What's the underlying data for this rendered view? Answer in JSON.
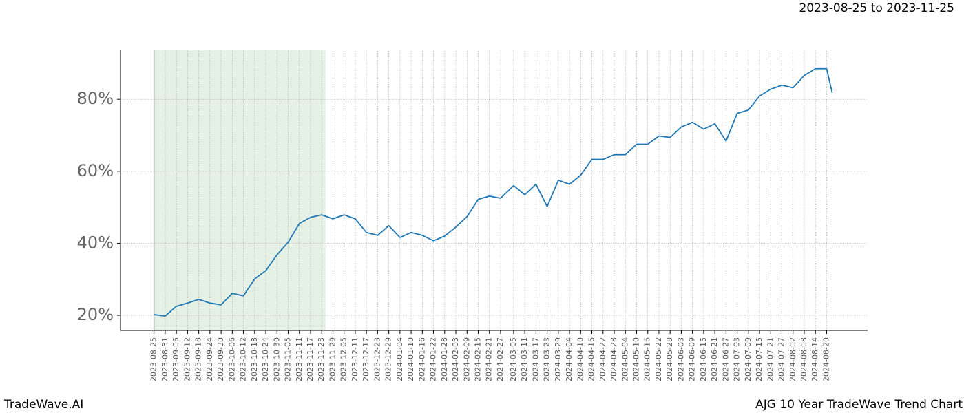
{
  "chart_data": {
    "type": "line",
    "subtitle": "2023-08-25 to 2023-11-25",
    "brand": "TradeWave.AI",
    "title": "AJG 10 Year TradeWave Trend Chart",
    "shade_range": [
      "2023-08-25",
      "2023-11-25"
    ],
    "color": "#1f77b4",
    "grid": true,
    "xlim": [
      "2023-08-07",
      "2024-09-11"
    ],
    "ylim": [
      15.8,
      93.8
    ],
    "yticks": [
      {
        "value": 20,
        "label": "20%"
      },
      {
        "value": 40,
        "label": "40%"
      },
      {
        "value": 60,
        "label": "60%"
      },
      {
        "value": 80,
        "label": "80%"
      }
    ],
    "xticks": [
      "2023-08-25",
      "2023-08-31",
      "2023-09-06",
      "2023-09-12",
      "2023-09-18",
      "2023-09-24",
      "2023-09-30",
      "2023-10-06",
      "2023-10-12",
      "2023-10-18",
      "2023-10-24",
      "2023-10-30",
      "2023-11-05",
      "2023-11-11",
      "2023-11-17",
      "2023-11-23",
      "2023-11-29",
      "2023-12-05",
      "2023-12-11",
      "2023-12-17",
      "2023-12-23",
      "2023-12-29",
      "2024-01-04",
      "2024-01-10",
      "2024-01-16",
      "2024-01-22",
      "2024-01-28",
      "2024-02-03",
      "2024-02-09",
      "2024-02-15",
      "2024-02-21",
      "2024-02-27",
      "2024-03-05",
      "2024-03-11",
      "2024-03-17",
      "2024-03-23",
      "2024-03-29",
      "2024-04-04",
      "2024-04-10",
      "2024-04-16",
      "2024-04-22",
      "2024-04-28",
      "2024-05-04",
      "2024-05-10",
      "2024-05-16",
      "2024-05-22",
      "2024-05-28",
      "2024-06-03",
      "2024-06-09",
      "2024-06-15",
      "2024-06-21",
      "2024-06-27",
      "2024-07-03",
      "2024-07-09",
      "2024-07-15",
      "2024-07-21",
      "2024-07-27",
      "2024-08-02",
      "2024-08-08",
      "2024-08-14",
      "2024-08-20"
    ],
    "x": [
      "2023-08-25",
      "2023-08-31",
      "2023-09-06",
      "2023-09-12",
      "2023-09-18",
      "2023-09-24",
      "2023-09-30",
      "2023-10-06",
      "2023-10-12",
      "2023-10-18",
      "2023-10-24",
      "2023-10-30",
      "2023-11-05",
      "2023-11-11",
      "2023-11-17",
      "2023-11-23",
      "2023-11-29",
      "2023-12-05",
      "2023-12-11",
      "2023-12-17",
      "2023-12-23",
      "2023-12-29",
      "2024-01-04",
      "2024-01-10",
      "2024-01-16",
      "2024-01-22",
      "2024-01-28",
      "2024-02-03",
      "2024-02-09",
      "2024-02-15",
      "2024-02-21",
      "2024-02-27",
      "2024-03-05",
      "2024-03-11",
      "2024-03-17",
      "2024-03-23",
      "2024-03-29",
      "2024-04-04",
      "2024-04-10",
      "2024-04-16",
      "2024-04-22",
      "2024-04-28",
      "2024-05-04",
      "2024-05-10",
      "2024-05-16",
      "2024-05-22",
      "2024-05-28",
      "2024-06-03",
      "2024-06-09",
      "2024-06-15",
      "2024-06-21",
      "2024-06-27",
      "2024-07-03",
      "2024-07-09",
      "2024-07-15",
      "2024-07-21",
      "2024-07-27",
      "2024-08-02",
      "2024-08-08",
      "2024-08-14",
      "2024-08-20",
      "2024-08-23"
    ],
    "values": [
      20.2,
      19.8,
      22.5,
      23.4,
      24.4,
      23.4,
      22.9,
      26.1,
      25.4,
      30.1,
      32.4,
      36.8,
      40.3,
      45.5,
      47.2,
      47.9,
      46.8,
      47.9,
      46.8,
      43.0,
      42.2,
      44.9,
      41.6,
      43.0,
      42.2,
      40.7,
      42.0,
      44.5,
      47.4,
      52.2,
      53.1,
      52.5,
      56.0,
      53.5,
      56.4,
      50.2,
      57.5,
      56.4,
      58.9,
      63.3,
      63.3,
      64.6,
      64.6,
      67.5,
      67.5,
      69.8,
      69.4,
      72.3,
      73.6,
      71.7,
      73.2,
      68.4,
      76.1,
      77.0,
      80.9,
      82.8,
      83.9,
      83.2,
      86.6,
      88.5,
      88.5,
      81.8
    ]
  }
}
